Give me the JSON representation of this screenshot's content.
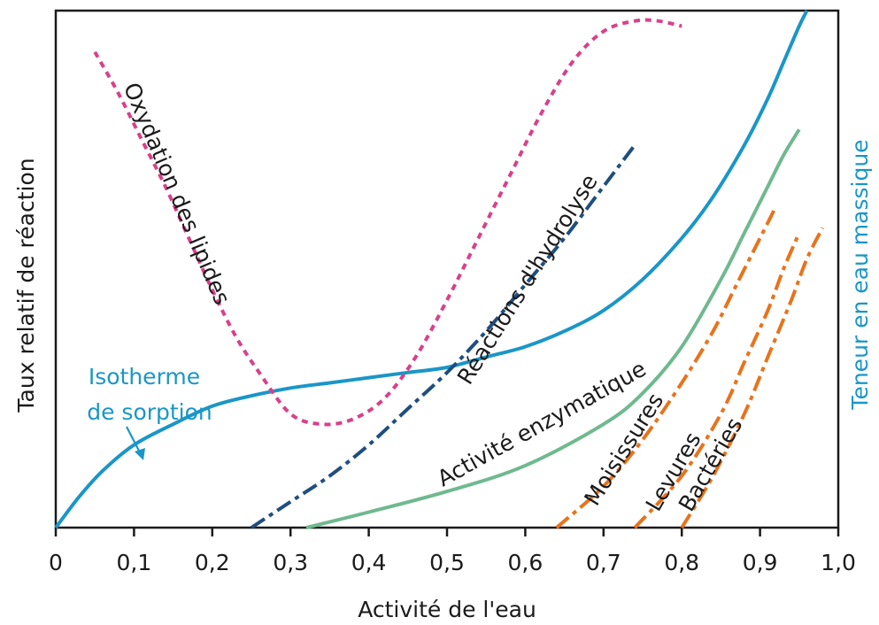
{
  "chart_data": {
    "type": "line",
    "xlabel": "Activité de l'eau",
    "ylabel_left": "Taux relatif de réaction",
    "ylabel_right": "Teneur en eau massique",
    "xlim": [
      0,
      1.0
    ],
    "ylim": [
      0,
      1.0
    ],
    "x_ticks": [
      "0",
      "0,1",
      "0,2",
      "0,3",
      "0,4",
      "0,5",
      "0,6",
      "0,7",
      "0,8",
      "0,9",
      "1,0"
    ],
    "x_tick_values": [
      0,
      0.1,
      0.2,
      0.3,
      0.4,
      0.5,
      0.6,
      0.7,
      0.8,
      0.9,
      1.0
    ],
    "grid": false,
    "legend": "none",
    "series": [
      {
        "key": "sorption",
        "name": "Isotherme de sorption",
        "name_lines": [
          "Isotherme",
          "de sorption"
        ],
        "color": "#1a96c8",
        "dash": "solid",
        "x": [
          0,
          0.03,
          0.06,
          0.1,
          0.15,
          0.2,
          0.25,
          0.3,
          0.35,
          0.4,
          0.45,
          0.5,
          0.55,
          0.6,
          0.65,
          0.7,
          0.75,
          0.8,
          0.84,
          0.88,
          0.91,
          0.93,
          0.95,
          0.96
        ],
        "y": [
          0,
          0.06,
          0.11,
          0.16,
          0.2,
          0.235,
          0.255,
          0.27,
          0.28,
          0.29,
          0.3,
          0.31,
          0.33,
          0.35,
          0.38,
          0.42,
          0.48,
          0.56,
          0.64,
          0.74,
          0.83,
          0.9,
          0.97,
          1.0
        ]
      },
      {
        "key": "lipides",
        "name": "Oxydation des lipides",
        "color": "#d9408a",
        "dash": "dotted",
        "x": [
          0.05,
          0.08,
          0.11,
          0.14,
          0.17,
          0.2,
          0.23,
          0.26,
          0.3,
          0.34,
          0.38,
          0.42,
          0.46,
          0.5,
          0.54,
          0.58,
          0.62,
          0.66,
          0.7,
          0.74,
          0.77,
          0.8
        ],
        "y": [
          0.92,
          0.84,
          0.75,
          0.66,
          0.56,
          0.46,
          0.37,
          0.3,
          0.22,
          0.2,
          0.21,
          0.25,
          0.33,
          0.44,
          0.56,
          0.68,
          0.8,
          0.9,
          0.96,
          0.98,
          0.98,
          0.97
        ]
      },
      {
        "key": "hydrolyse",
        "name": "Réactions d'hydrolyse",
        "color": "#1f4e80",
        "dash": "dashdot",
        "x": [
          0.25,
          0.3,
          0.35,
          0.4,
          0.45,
          0.5,
          0.55,
          0.6,
          0.65,
          0.7,
          0.74
        ],
        "y": [
          0.0,
          0.05,
          0.1,
          0.16,
          0.23,
          0.3,
          0.38,
          0.47,
          0.56,
          0.66,
          0.74
        ]
      },
      {
        "key": "enzymatique",
        "name": "Activité enzymatique",
        "color": "#6fb98f",
        "dash": "solid",
        "x": [
          0.32,
          0.4,
          0.5,
          0.6,
          0.7,
          0.75,
          0.8,
          0.85,
          0.88,
          0.91,
          0.93,
          0.95
        ],
        "y": [
          0.0,
          0.03,
          0.07,
          0.12,
          0.2,
          0.26,
          0.35,
          0.48,
          0.57,
          0.66,
          0.72,
          0.77
        ]
      },
      {
        "key": "moisissures",
        "name": "Moisissures",
        "color": "#e8731c",
        "dash": "dashdot",
        "x": [
          0.64,
          0.7,
          0.75,
          0.8,
          0.84,
          0.87,
          0.9,
          0.92
        ],
        "y": [
          0.0,
          0.08,
          0.17,
          0.28,
          0.38,
          0.47,
          0.56,
          0.62
        ]
      },
      {
        "key": "levures",
        "name": "Levures",
        "color": "#e8731c",
        "dash": "dashdot",
        "x": [
          0.74,
          0.8,
          0.85,
          0.88,
          0.91,
          0.93,
          0.95
        ],
        "y": [
          0.0,
          0.1,
          0.22,
          0.32,
          0.42,
          0.5,
          0.57
        ]
      },
      {
        "key": "bacteries",
        "name": "Bactéries",
        "color": "#e8731c",
        "dash": "dashdot",
        "x": [
          0.8,
          0.84,
          0.88,
          0.91,
          0.94,
          0.96,
          0.98
        ],
        "y": [
          0.0,
          0.1,
          0.22,
          0.33,
          0.44,
          0.52,
          0.58
        ]
      }
    ]
  }
}
